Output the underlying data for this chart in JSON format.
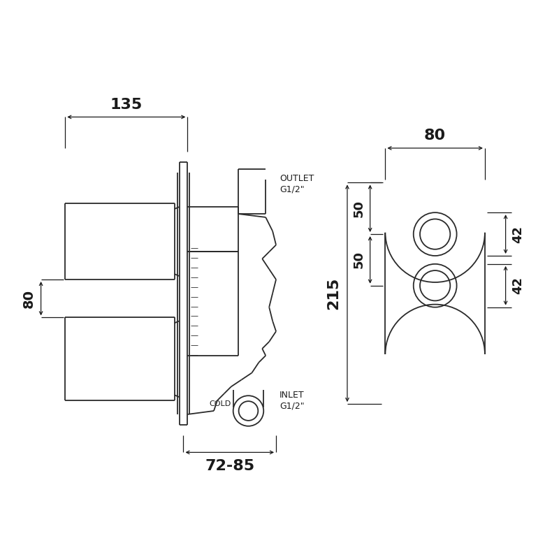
{
  "bg_color": "#ffffff",
  "line_color": "#2a2a2a",
  "dim_color": "#1a1a1a",
  "left_view": {
    "dim_135_label": "135",
    "dim_80_label": "80",
    "dim_7285_label": "72-85",
    "outlet_label": "OUTLET\nG1/2\"",
    "inlet_label": "INLET\nG1/2\"",
    "cold_label": "COLD"
  },
  "right_view": {
    "dim_80_label": "80",
    "dim_215_label": "215",
    "dim_50_top_label": "50",
    "dim_50_bot_label": "50",
    "dim_42_top_label": "42",
    "dim_42_bot_label": "42"
  }
}
